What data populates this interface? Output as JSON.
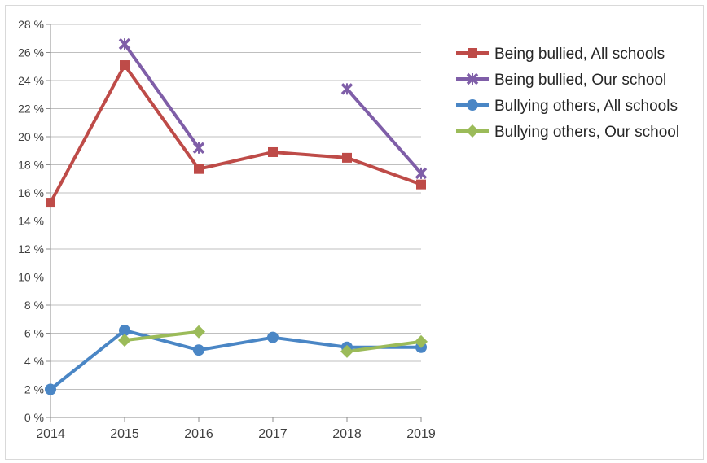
{
  "chart_data": {
    "type": "line",
    "title": "",
    "xlabel": "",
    "ylabel": "",
    "x": [
      "2014",
      "2015",
      "2016",
      "2017",
      "2018",
      "2019"
    ],
    "ylim": [
      0,
      28
    ],
    "y_ticks": [
      {
        "value": 0,
        "label": "0 %"
      },
      {
        "value": 2,
        "label": "2 %"
      },
      {
        "value": 4,
        "label": "4 %"
      },
      {
        "value": 6,
        "label": "6 %"
      },
      {
        "value": 8,
        "label": "8 %"
      },
      {
        "value": 10,
        "label": "10 %"
      },
      {
        "value": 12,
        "label": "12 %"
      },
      {
        "value": 14,
        "label": "14 %"
      },
      {
        "value": 16,
        "label": "16 %"
      },
      {
        "value": 18,
        "label": "18 %"
      },
      {
        "value": 20,
        "label": "20 %"
      },
      {
        "value": 22,
        "label": "22 %"
      },
      {
        "value": 24,
        "label": "24 %"
      },
      {
        "value": 26,
        "label": "26 %"
      },
      {
        "value": 28,
        "label": "28 %"
      }
    ],
    "grid": "horizontal",
    "legend_position": "right",
    "series": [
      {
        "name": "Being bullied, All schools",
        "color": "#be4b48",
        "marker": "square",
        "values": [
          15.3,
          25.1,
          17.7,
          18.9,
          18.5,
          16.6
        ]
      },
      {
        "name": "Being bullied, Our school",
        "color": "#7f5ea8",
        "marker": "x",
        "values": [
          null,
          26.6,
          19.2,
          null,
          23.4,
          17.4
        ]
      },
      {
        "name": "Bullying others, All schools",
        "color": "#4a86c5",
        "marker": "circle",
        "values": [
          2.0,
          6.2,
          4.8,
          5.7,
          5.0,
          5.0
        ]
      },
      {
        "name": "Bullying others, Our school",
        "color": "#9bbb59",
        "marker": "diamond",
        "values": [
          null,
          5.5,
          6.1,
          null,
          4.7,
          5.4
        ]
      }
    ]
  }
}
